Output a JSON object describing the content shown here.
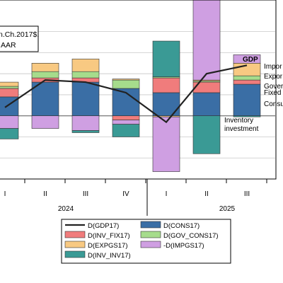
{
  "chart_data": {
    "type": "bar",
    "subtype": "stacked bar with line overlay",
    "categories": [
      "I",
      "II",
      "III",
      "IV",
      "I",
      "II",
      "III"
    ],
    "years": [
      {
        "label": "2024",
        "quarters": [
          "I",
          "II",
          "III",
          "IV"
        ]
      },
      {
        "label": "2025",
        "quarters": [
          "I",
          "II",
          "III"
        ]
      }
    ],
    "units_label_line1": "n.Ch.2017$.",
    "units_label_line2": "AAR",
    "ylim": [
      -3.0,
      5.5
    ],
    "gridlines": [
      -2.0,
      -1.0,
      0.0,
      1.0,
      2.0,
      3.0,
      4.0
    ],
    "grid": true,
    "series": [
      {
        "key": "cons",
        "name": "D(CONS17)",
        "color": "#3a6ea5",
        "values": [
          0.9,
          1.6,
          1.6,
          1.3,
          1.1,
          1.1,
          1.5
        ]
      },
      {
        "key": "inv_fix",
        "name": "D(INV_FIX17)",
        "color": "#f07c7c",
        "values": [
          0.4,
          0.2,
          0.2,
          -0.2,
          0.7,
          0.5,
          0.2
        ]
      },
      {
        "key": "gov",
        "name": "D(GOV_CONS17)",
        "color": "#a6dc8c",
        "values": [
          0.1,
          0.3,
          0.3,
          0.4,
          0.05,
          0.05,
          0.2
        ]
      },
      {
        "key": "expgs",
        "name": "D(EXPGS17)",
        "color": "#f8c982",
        "values": [
          0.2,
          0.4,
          0.6,
          0.05,
          -0.05,
          0.05,
          0.6
        ]
      },
      {
        "key": "impgs",
        "name": "-D(IMPGS17)",
        "color": "#cf9fe2",
        "values": [
          -0.6,
          -0.6,
          -0.7,
          -0.2,
          -2.6,
          4.0,
          0.4
        ]
      },
      {
        "key": "inv_inv",
        "name": "D(INV_INV17)",
        "color": "#3a9a95",
        "values": [
          -0.5,
          0.0,
          -0.1,
          -0.6,
          1.7,
          -1.8,
          -0.05
        ]
      }
    ],
    "line_series": {
      "key": "gdp",
      "name": "D(GDP17)",
      "color": "#222222",
      "values": [
        0.4,
        1.7,
        1.6,
        1.1,
        -0.3,
        2.0,
        2.4
      ]
    },
    "annotations": {
      "gdp": "GDP",
      "inventory_line1": "Inventory",
      "inventory_line2": "investment",
      "right_labels": [
        "Impor",
        "Expor",
        "Gover",
        "Fixed",
        "Consu"
      ]
    },
    "legend": {
      "placement": "bottom",
      "order": [
        "gdp",
        "cons",
        "inv_fix",
        "gov",
        "expgs",
        "impgs",
        "inv_inv"
      ]
    }
  }
}
